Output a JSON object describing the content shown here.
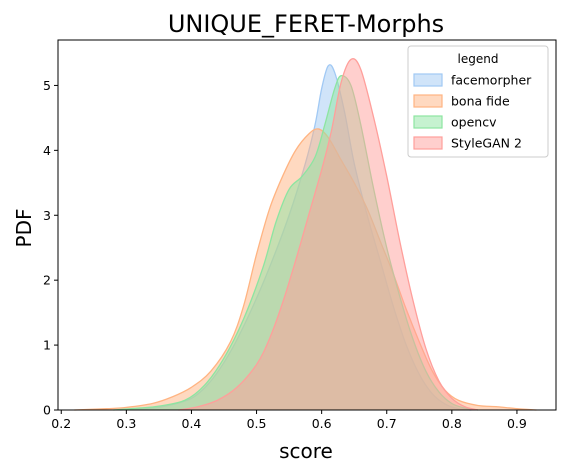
{
  "chart_data": {
    "type": "area",
    "title": "UNIQUE_FERET-Morphs",
    "xlabel": "score",
    "ylabel": "PDF",
    "xlim": [
      0.195,
      0.96
    ],
    "ylim": [
      0,
      5.7
    ],
    "xticks": [
      "0.2",
      "0.3",
      "0.4",
      "0.5",
      "0.6",
      "0.7",
      "0.8",
      "0.9"
    ],
    "yticks": [
      "0",
      "1",
      "2",
      "3",
      "4",
      "5"
    ],
    "grid": false,
    "legend": {
      "title": "legend",
      "placement": "top-right"
    },
    "series": [
      {
        "name": "facemorpher",
        "color": "#a1c9f4",
        "points": [
          [
            0.29,
            0
          ],
          [
            0.33,
            0.02
          ],
          [
            0.36,
            0.06
          ],
          [
            0.4,
            0.18
          ],
          [
            0.43,
            0.45
          ],
          [
            0.46,
            0.9
          ],
          [
            0.49,
            1.5
          ],
          [
            0.52,
            2.2
          ],
          [
            0.55,
            3.0
          ],
          [
            0.575,
            3.8
          ],
          [
            0.59,
            4.4
          ],
          [
            0.6,
            4.95
          ],
          [
            0.61,
            5.3
          ],
          [
            0.62,
            5.2
          ],
          [
            0.635,
            4.6
          ],
          [
            0.65,
            3.8
          ],
          [
            0.67,
            3.0
          ],
          [
            0.69,
            2.3
          ],
          [
            0.71,
            1.6
          ],
          [
            0.73,
            1.0
          ],
          [
            0.75,
            0.55
          ],
          [
            0.77,
            0.25
          ],
          [
            0.79,
            0.09
          ],
          [
            0.81,
            0.02
          ],
          [
            0.83,
            0
          ]
        ]
      },
      {
        "name": "bona fide",
        "color": "#ffb482",
        "points": [
          [
            0.22,
            0
          ],
          [
            0.27,
            0.02
          ],
          [
            0.3,
            0.04
          ],
          [
            0.34,
            0.1
          ],
          [
            0.37,
            0.2
          ],
          [
            0.4,
            0.35
          ],
          [
            0.43,
            0.6
          ],
          [
            0.46,
            1.05
          ],
          [
            0.48,
            1.6
          ],
          [
            0.5,
            2.4
          ],
          [
            0.52,
            3.1
          ],
          [
            0.54,
            3.6
          ],
          [
            0.56,
            4.0
          ],
          [
            0.58,
            4.25
          ],
          [
            0.595,
            4.33
          ],
          [
            0.61,
            4.2
          ],
          [
            0.63,
            3.85
          ],
          [
            0.65,
            3.5
          ],
          [
            0.67,
            3.1
          ],
          [
            0.69,
            2.6
          ],
          [
            0.71,
            2.1
          ],
          [
            0.73,
            1.55
          ],
          [
            0.75,
            1.05
          ],
          [
            0.77,
            0.6
          ],
          [
            0.79,
            0.3
          ],
          [
            0.81,
            0.15
          ],
          [
            0.84,
            0.07
          ],
          [
            0.87,
            0.05
          ],
          [
            0.9,
            0.02
          ],
          [
            0.93,
            0
          ]
        ]
      },
      {
        "name": "opencv",
        "color": "#8de5a1",
        "points": [
          [
            0.28,
            0
          ],
          [
            0.32,
            0.03
          ],
          [
            0.35,
            0.06
          ],
          [
            0.39,
            0.15
          ],
          [
            0.42,
            0.38
          ],
          [
            0.45,
            0.8
          ],
          [
            0.48,
            1.4
          ],
          [
            0.51,
            2.2
          ],
          [
            0.53,
            2.9
          ],
          [
            0.55,
            3.4
          ],
          [
            0.57,
            3.6
          ],
          [
            0.59,
            3.9
          ],
          [
            0.605,
            4.4
          ],
          [
            0.62,
            4.95
          ],
          [
            0.63,
            5.15
          ],
          [
            0.645,
            5.0
          ],
          [
            0.66,
            4.4
          ],
          [
            0.68,
            3.4
          ],
          [
            0.7,
            2.5
          ],
          [
            0.72,
            1.75
          ],
          [
            0.74,
            1.1
          ],
          [
            0.76,
            0.6
          ],
          [
            0.78,
            0.28
          ],
          [
            0.8,
            0.1
          ],
          [
            0.82,
            0.03
          ],
          [
            0.84,
            0
          ]
        ]
      },
      {
        "name": "StyleGAN 2",
        "color": "#ff9f9b",
        "points": [
          [
            0.38,
            0
          ],
          [
            0.41,
            0.05
          ],
          [
            0.44,
            0.15
          ],
          [
            0.47,
            0.35
          ],
          [
            0.5,
            0.7
          ],
          [
            0.52,
            1.1
          ],
          [
            0.54,
            1.65
          ],
          [
            0.56,
            2.3
          ],
          [
            0.58,
            3.0
          ],
          [
            0.6,
            3.7
          ],
          [
            0.615,
            4.3
          ],
          [
            0.63,
            5.05
          ],
          [
            0.645,
            5.4
          ],
          [
            0.66,
            5.25
          ],
          [
            0.68,
            4.5
          ],
          [
            0.7,
            3.6
          ],
          [
            0.72,
            2.6
          ],
          [
            0.74,
            1.7
          ],
          [
            0.76,
            0.95
          ],
          [
            0.78,
            0.45
          ],
          [
            0.8,
            0.18
          ],
          [
            0.82,
            0.05
          ],
          [
            0.84,
            0
          ]
        ]
      }
    ]
  }
}
